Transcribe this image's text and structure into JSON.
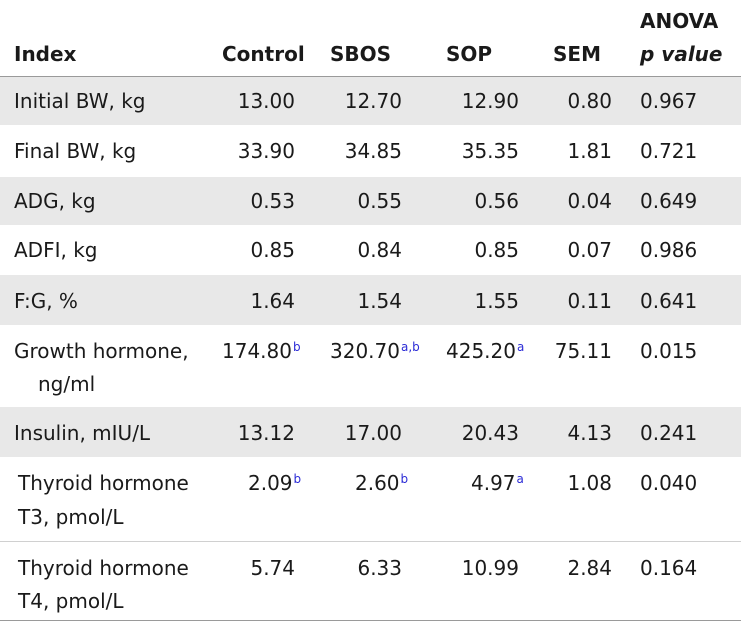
{
  "headers": {
    "index": "Index",
    "control": "Control",
    "sbos": "SBOS",
    "sop": "SOP",
    "sem": "SEM",
    "anova_line1": "ANOVA",
    "anova_line2": "p value"
  },
  "rows": [
    {
      "index": "Initial BW, kg",
      "control": "13.00",
      "sbos": "12.70",
      "sop": "12.90",
      "sem": "0.80",
      "p": "0.967"
    },
    {
      "index": "Final BW, kg",
      "control": "33.90",
      "sbos": "34.85",
      "sop": "35.35",
      "sem": "1.81",
      "p": "0.721"
    },
    {
      "index": "ADG, kg",
      "control": "0.53",
      "sbos": "0.55",
      "sop": "0.56",
      "sem": "0.04",
      "p": "0.649"
    },
    {
      "index": "ADFI, kg",
      "control": "0.85",
      "sbos": "0.84",
      "sop": "0.85",
      "sem": "0.07",
      "p": "0.986"
    },
    {
      "index": "F:G, %",
      "control": "1.64",
      "sbos": "1.54",
      "sop": "1.55",
      "sem": "0.11",
      "p": "0.641"
    },
    {
      "index_line1": "Growth hormone,",
      "index_line2": "ng/ml",
      "control": "174.80",
      "control_sup": "b",
      "sbos": "320.70",
      "sbos_sup": "a,b",
      "sop": "425.20",
      "sop_sup": "a",
      "sem": "75.11",
      "p": "0.015"
    },
    {
      "index": "Insulin, mIU/L",
      "control": "13.12",
      "sbos": "17.00",
      "sop": "20.43",
      "sem": "4.13",
      "p": "0.241"
    },
    {
      "index_line1": "Thyroid hormone",
      "index_line2": "T3, pmol/L",
      "control": "2.09",
      "control_sup": "b",
      "sbos": "2.60",
      "sbos_sup": "b",
      "sop": "4.97",
      "sop_sup": "a",
      "sem": "1.08",
      "p": "0.040"
    },
    {
      "index_line1": "Thyroid hormone",
      "index_line2": "T4, pmol/L",
      "control": "5.74",
      "sbos": "6.33",
      "sop": "10.99",
      "sem": "2.84",
      "p": "0.164"
    }
  ],
  "colors": {
    "shade": "#e8e8e8",
    "superscript": "#2b2bd6",
    "rule": "#9a9a9a"
  }
}
